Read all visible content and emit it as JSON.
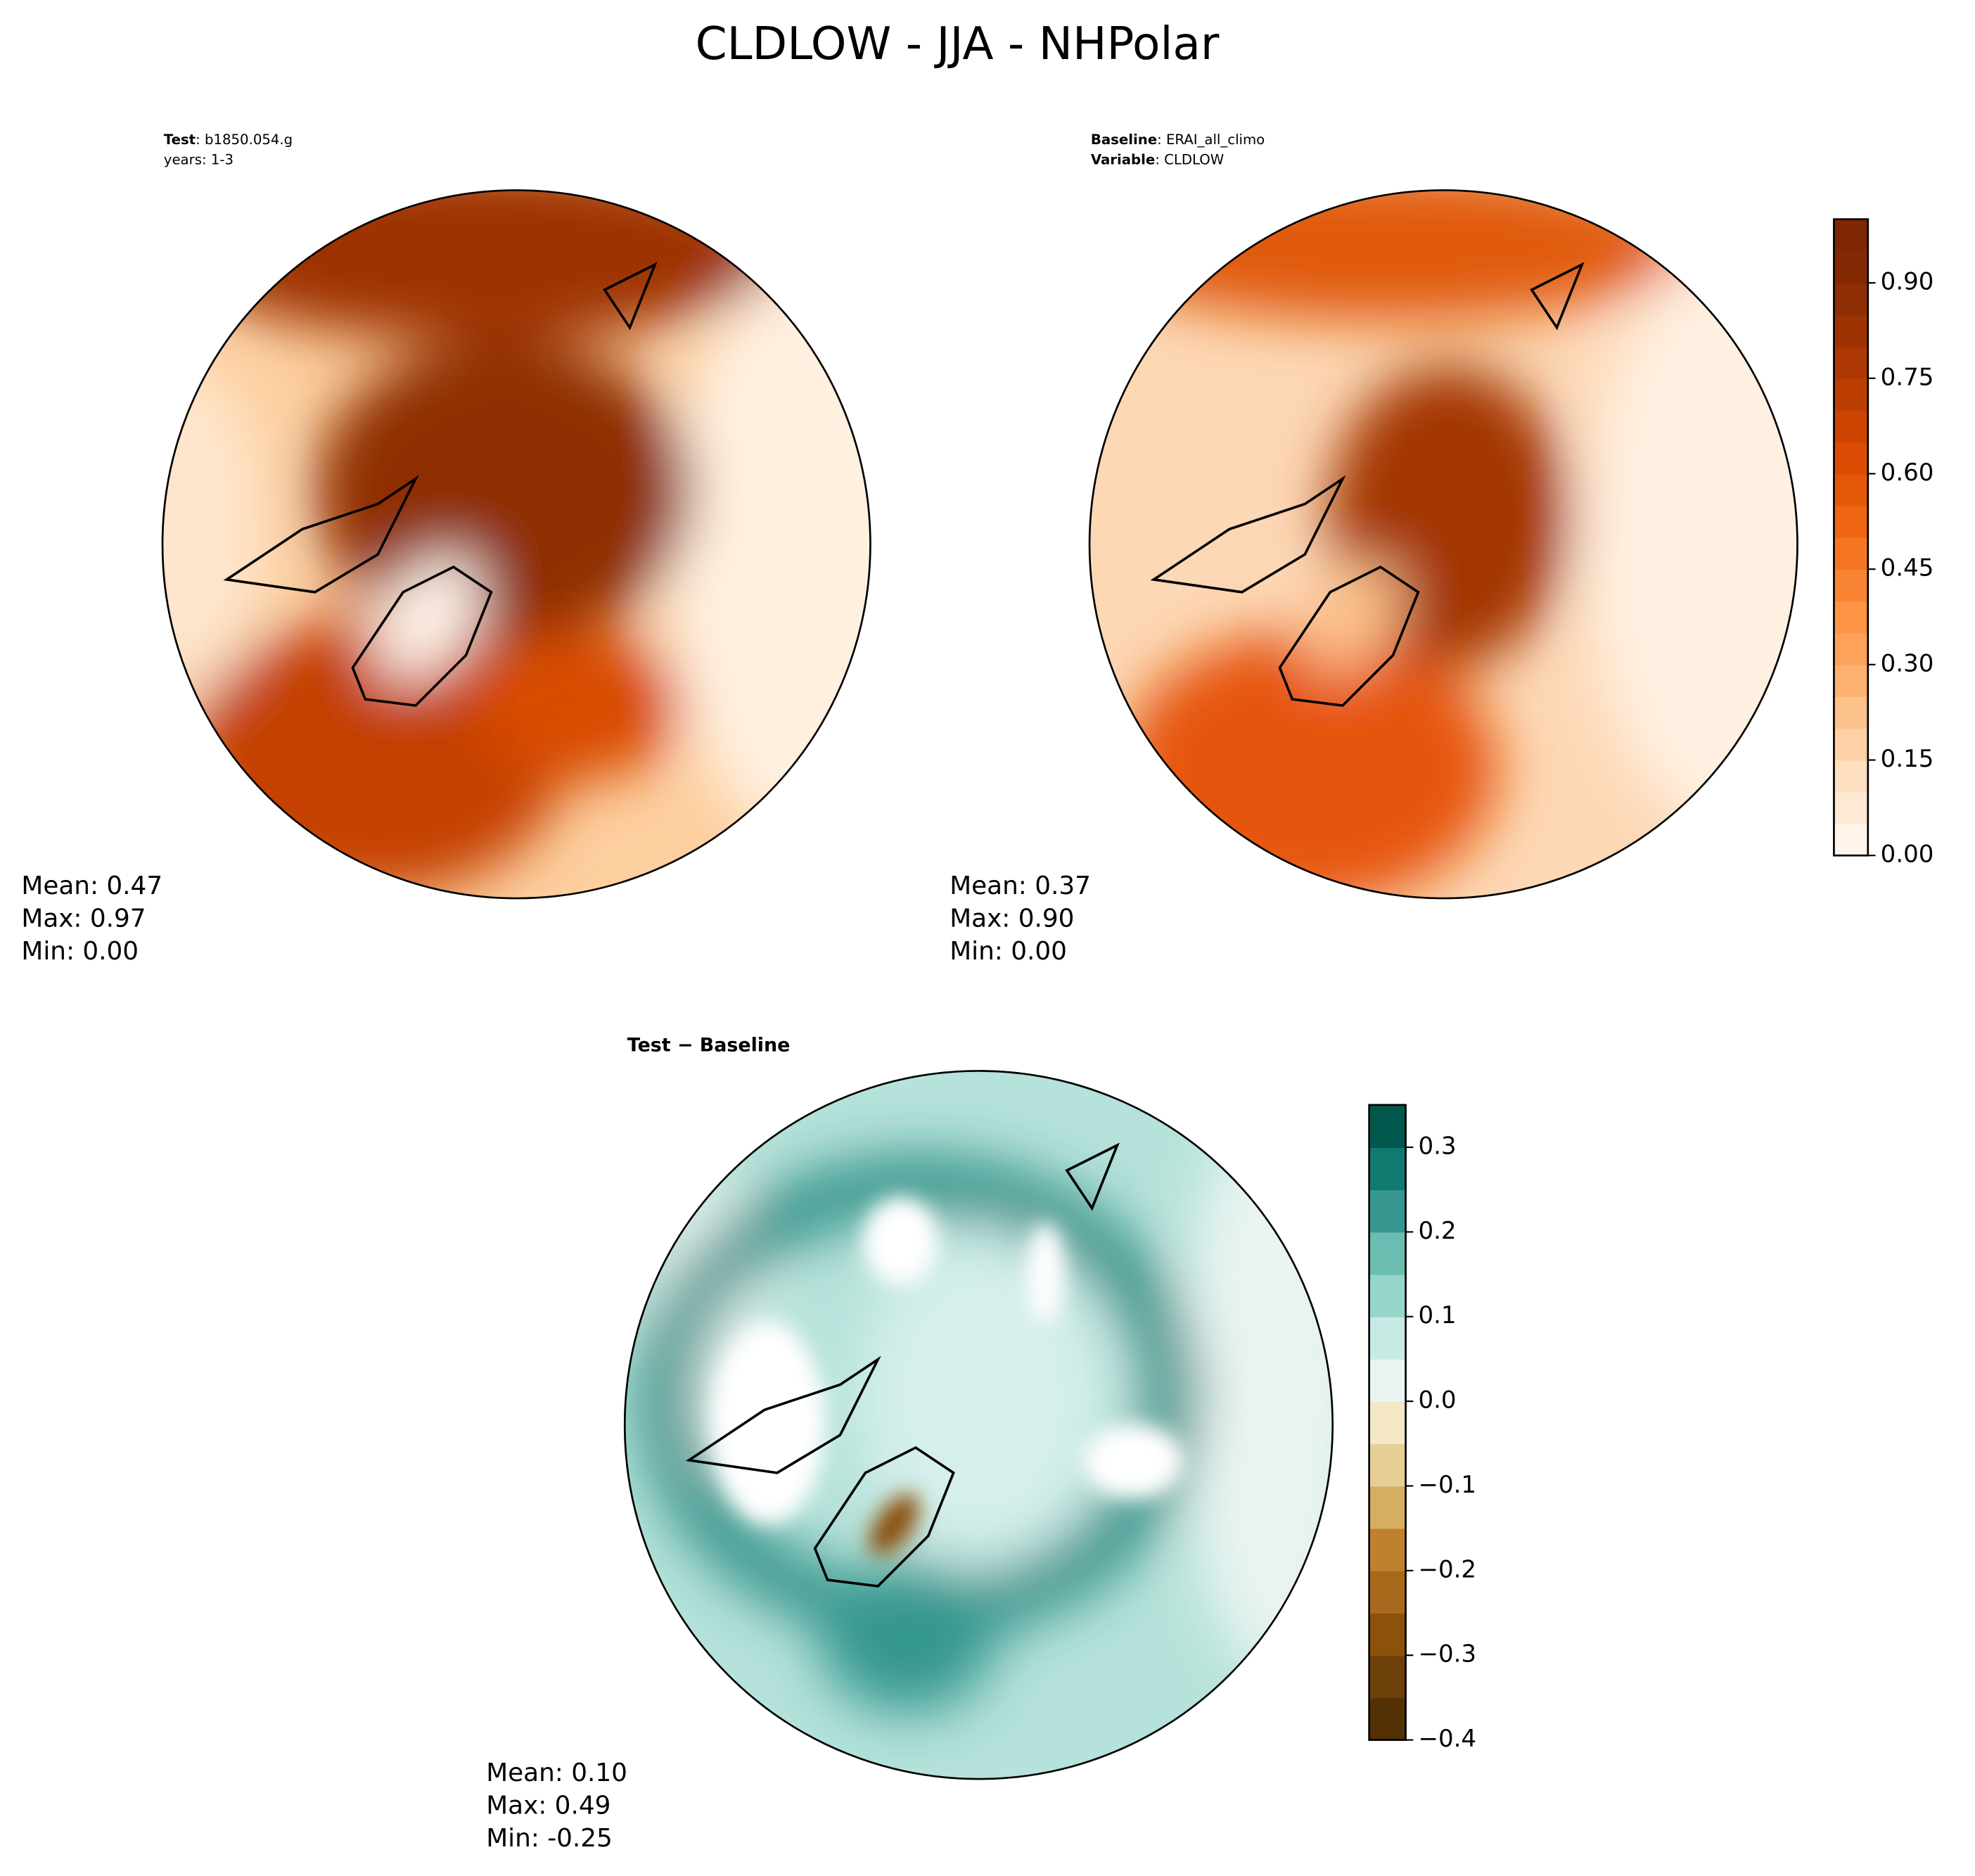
{
  "title": "CLDLOW - JJA - NHPolar",
  "panels": [
    {
      "lines": [
        {
          "key": "Test",
          "value": ": b1850.054.g"
        },
        {
          "value": "years: 1-3"
        }
      ],
      "stats": [
        "Mean:  0.47",
        "Max:  0.97",
        "Min:  0.00"
      ]
    },
    {
      "lines": [
        {
          "key": "Baseline",
          "value": ": ERAI_all_climo"
        },
        {
          "key": "Variable",
          "value": ": CLDLOW"
        }
      ],
      "stats": [
        "Mean:  0.37",
        "Max:  0.90",
        "Min:  0.00"
      ]
    },
    {
      "lines": [
        {
          "key": "Test − Baseline"
        }
      ],
      "stats": [
        "Mean:  0.10",
        "Max:  0.49",
        "Min: -0.25"
      ]
    }
  ],
  "colorbars": [
    {
      "lim": [
        0,
        1
      ],
      "ticks": [
        {
          "value": 0,
          "label": "0.00"
        },
        0.15,
        {
          "value": 0.3,
          "label": "0.30"
        },
        0.45,
        {
          "value": 0.6,
          "label": "0.60"
        },
        0.75,
        {
          "value": 0.9,
          "label": "0.90"
        }
      ],
      "colors": [
        "#fff5eb",
        "#fee9d4",
        "#fedfc0",
        "#fdd1a5",
        "#fdc28c",
        "#fdb272",
        "#fda25b",
        "#fd9446",
        "#f98433",
        "#f57622",
        "#ef6612",
        "#e5580a",
        "#db4b03",
        "#cc4302",
        "#bd3e02",
        "#ad3803",
        "#9d3203",
        "#8f2d04",
        "#832904",
        "#7f2704"
      ]
    },
    {
      "lim": [
        -0.4,
        0.35
      ],
      "ticks": [
        {
          "value": -0.4,
          "label": "−0.4"
        },
        {
          "value": -0.3,
          "label": "−0.3"
        },
        {
          "value": -0.2,
          "label": "−0.2"
        },
        {
          "value": -0.1,
          "label": "−0.1"
        },
        {
          "value": 0,
          "label": "0.0"
        },
        0.1,
        0.2,
        0.3
      ],
      "colors": [
        "#543005",
        "#6e4009",
        "#8c510a",
        "#a9691c",
        "#bf812d",
        "#d3ae63",
        "#e6cf94",
        "#f4e8c7",
        "#eaf4f2",
        "#c7eae5",
        "#97d6ca",
        "#6bbcb1",
        "#35978f",
        "#117a70",
        "#01574c"
      ]
    }
  ]
}
